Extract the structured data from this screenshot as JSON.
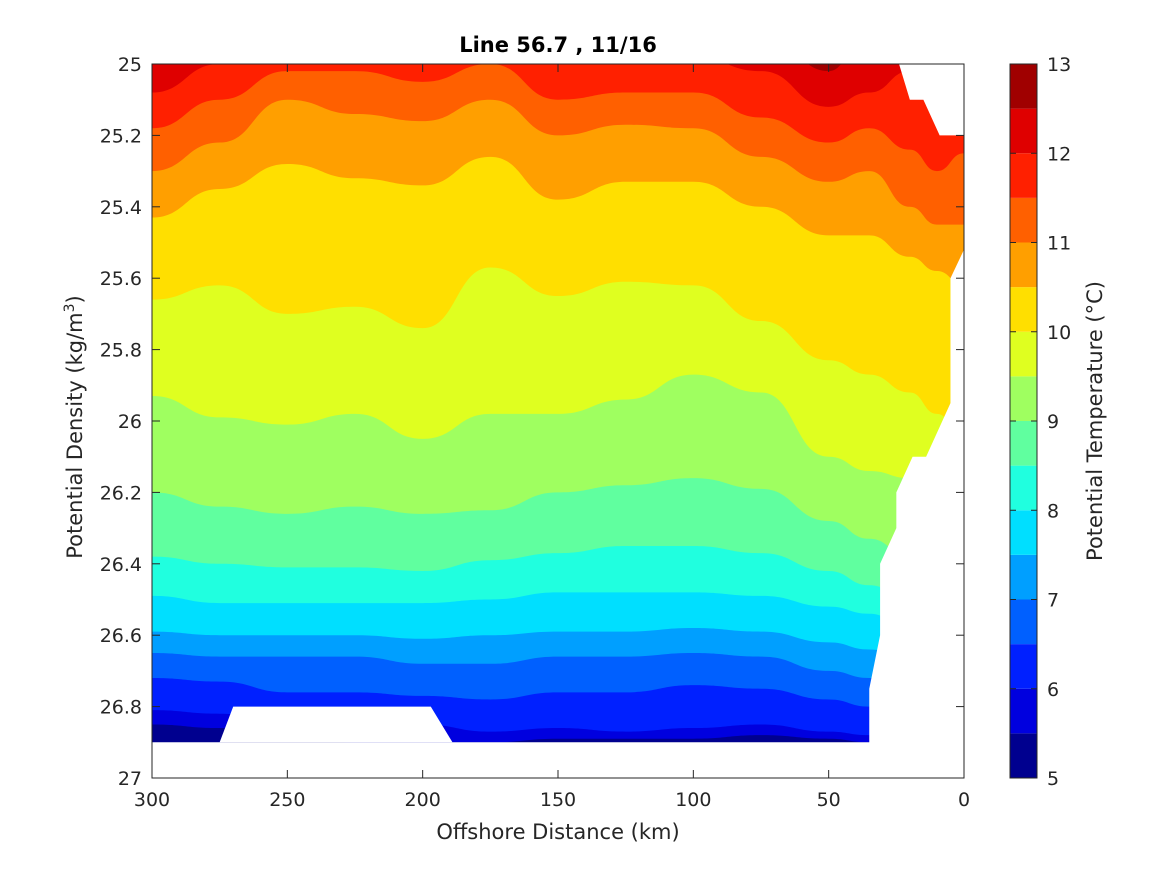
{
  "chart_data": {
    "type": "contourf",
    "title": "Line 56.7 , 11/16",
    "xlabel": "Offshore Distance (km)",
    "ylabel": "Potential Density (kg/m³)",
    "ylabel_main": "Potential Density (kg/m",
    "ylabel_sup": "3",
    "ylabel_end": ")",
    "xlim": [
      300,
      0
    ],
    "x_reversed": true,
    "ylim": [
      25,
      27
    ],
    "y_reversed": true,
    "xticks": [
      300,
      250,
      200,
      150,
      100,
      50,
      0
    ],
    "yticks": [
      25,
      25.2,
      25.4,
      25.6,
      25.8,
      26,
      26.2,
      26.4,
      26.6,
      26.8,
      27
    ],
    "colorbar": {
      "label": "Potential Temperature (°C)",
      "range": [
        5,
        13
      ],
      "ticks": [
        5,
        6,
        7,
        8,
        9,
        10,
        11,
        12,
        13
      ],
      "levels": [
        5,
        5.5,
        6,
        6.5,
        7,
        7.5,
        8,
        8.5,
        9,
        9.5,
        10,
        10.5,
        11,
        11.5,
        12,
        12.5,
        13
      ],
      "colors": [
        "#00008f",
        "#0000df",
        "#0020ff",
        "#0060ff",
        "#009fff",
        "#00dfff",
        "#20ffdf",
        "#60ff9f",
        "#9fff60",
        "#dfff20",
        "#ffdf00",
        "#ff9f00",
        "#ff6000",
        "#ff2000",
        "#df0000",
        "#a00000"
      ]
    },
    "x_samples": [
      300,
      275,
      250,
      225,
      200,
      175,
      150,
      125,
      100,
      75,
      50,
      35,
      20,
      10,
      0
    ],
    "contours": [
      {
        "level": 12.5,
        "sigma": [
          24.9,
          24.9,
          24.9,
          24.9,
          24.9,
          24.9,
          24.9,
          24.9,
          24.9,
          24.9,
          25.02,
          24.9,
          24.9,
          24.9,
          24.9
        ]
      },
      {
        "level": 12.0,
        "sigma": [
          25.08,
          25.0,
          24.92,
          24.92,
          24.92,
          24.92,
          24.92,
          24.95,
          24.98,
          25.02,
          25.12,
          25.08,
          25.02,
          25.08,
          25.12
        ]
      },
      {
        "level": 11.5,
        "sigma": [
          25.18,
          25.1,
          25.02,
          25.02,
          25.05,
          25.0,
          25.1,
          25.08,
          25.08,
          25.15,
          25.22,
          25.18,
          25.24,
          25.3,
          25.25
        ]
      },
      {
        "level": 11.0,
        "sigma": [
          25.3,
          25.22,
          25.1,
          25.14,
          25.16,
          25.1,
          25.2,
          25.17,
          25.18,
          25.26,
          25.33,
          25.3,
          25.4,
          25.45,
          25.45
        ]
      },
      {
        "level": 10.5,
        "sigma": [
          25.43,
          25.35,
          25.28,
          25.32,
          25.34,
          25.26,
          25.38,
          25.33,
          25.33,
          25.4,
          25.48,
          25.48,
          25.54,
          25.58,
          25.62
        ]
      },
      {
        "level": 10.0,
        "sigma": [
          25.66,
          25.62,
          25.7,
          25.68,
          25.74,
          25.57,
          25.65,
          25.61,
          25.62,
          25.72,
          25.83,
          25.87,
          25.92,
          25.98,
          26.05
        ]
      },
      {
        "level": 9.5,
        "sigma": [
          25.93,
          25.99,
          26.01,
          25.98,
          26.05,
          25.98,
          25.98,
          25.94,
          25.87,
          25.92,
          26.1,
          26.14,
          26.16,
          26.2,
          26.25
        ]
      },
      {
        "level": 9.0,
        "sigma": [
          26.2,
          26.24,
          26.26,
          26.24,
          26.26,
          26.25,
          26.2,
          26.18,
          26.16,
          26.19,
          26.28,
          26.33,
          26.38,
          26.42,
          26.45
        ]
      },
      {
        "level": 8.5,
        "sigma": [
          26.38,
          26.4,
          26.41,
          26.41,
          26.42,
          26.39,
          26.37,
          26.35,
          26.35,
          26.37,
          26.42,
          26.46,
          26.5,
          26.53,
          26.56
        ]
      },
      {
        "level": 8.0,
        "sigma": [
          26.49,
          26.51,
          26.51,
          26.51,
          26.51,
          26.5,
          26.48,
          26.48,
          26.48,
          26.49,
          26.52,
          26.54,
          26.58,
          26.6,
          26.62
        ]
      },
      {
        "level": 7.5,
        "sigma": [
          26.59,
          26.6,
          26.6,
          26.6,
          26.61,
          26.6,
          26.59,
          26.59,
          26.58,
          26.59,
          26.62,
          26.64,
          26.66,
          26.68,
          26.7
        ]
      },
      {
        "level": 7.0,
        "sigma": [
          26.65,
          26.66,
          26.66,
          26.66,
          26.68,
          26.68,
          26.66,
          26.66,
          26.65,
          26.66,
          26.7,
          26.72,
          26.74,
          26.76,
          26.78
        ]
      },
      {
        "level": 6.5,
        "sigma": [
          26.72,
          26.73,
          26.76,
          26.76,
          26.77,
          26.78,
          26.76,
          26.76,
          26.74,
          26.75,
          26.78,
          26.8,
          26.82,
          26.84,
          26.86
        ]
      },
      {
        "level": 6.0,
        "sigma": [
          26.81,
          26.82,
          26.84,
          26.85,
          26.85,
          26.87,
          26.86,
          26.87,
          26.86,
          26.85,
          26.87,
          26.88,
          26.9,
          26.9,
          26.9
        ]
      },
      {
        "level": 5.5,
        "sigma": [
          26.85,
          26.86,
          26.88,
          26.9,
          26.9,
          26.9,
          26.89,
          26.89,
          26.89,
          26.88,
          26.89,
          26.9,
          26.9,
          26.9,
          26.9
        ]
      }
    ],
    "masked_regions": [
      {
        "name": "bottom-gap",
        "points": [
          [
            275,
            26.9
          ],
          [
            270,
            26.8
          ],
          [
            197,
            26.8
          ],
          [
            189,
            26.9
          ]
        ]
      },
      {
        "name": "coastal-edge",
        "points": [
          [
            35,
            26.9
          ],
          [
            35,
            26.75
          ],
          [
            31,
            26.6
          ],
          [
            31,
            26.4
          ],
          [
            25,
            26.3
          ],
          [
            25,
            26.2
          ],
          [
            19,
            26.1
          ],
          [
            14,
            26.1
          ],
          [
            5,
            25.95
          ],
          [
            5,
            25.6
          ],
          [
            0,
            25.52
          ],
          [
            0,
            25.2
          ],
          [
            9,
            25.2
          ],
          [
            15,
            25.1
          ],
          [
            20,
            25.1
          ],
          [
            24,
            25.0
          ],
          [
            0,
            25.0
          ],
          [
            0,
            27.0
          ],
          [
            35,
            27.0
          ]
        ]
      },
      {
        "name": "below-data",
        "points": [
          [
            300,
            26.9
          ],
          [
            0,
            26.9
          ],
          [
            0,
            27.0
          ],
          [
            300,
            27.0
          ]
        ]
      }
    ]
  }
}
